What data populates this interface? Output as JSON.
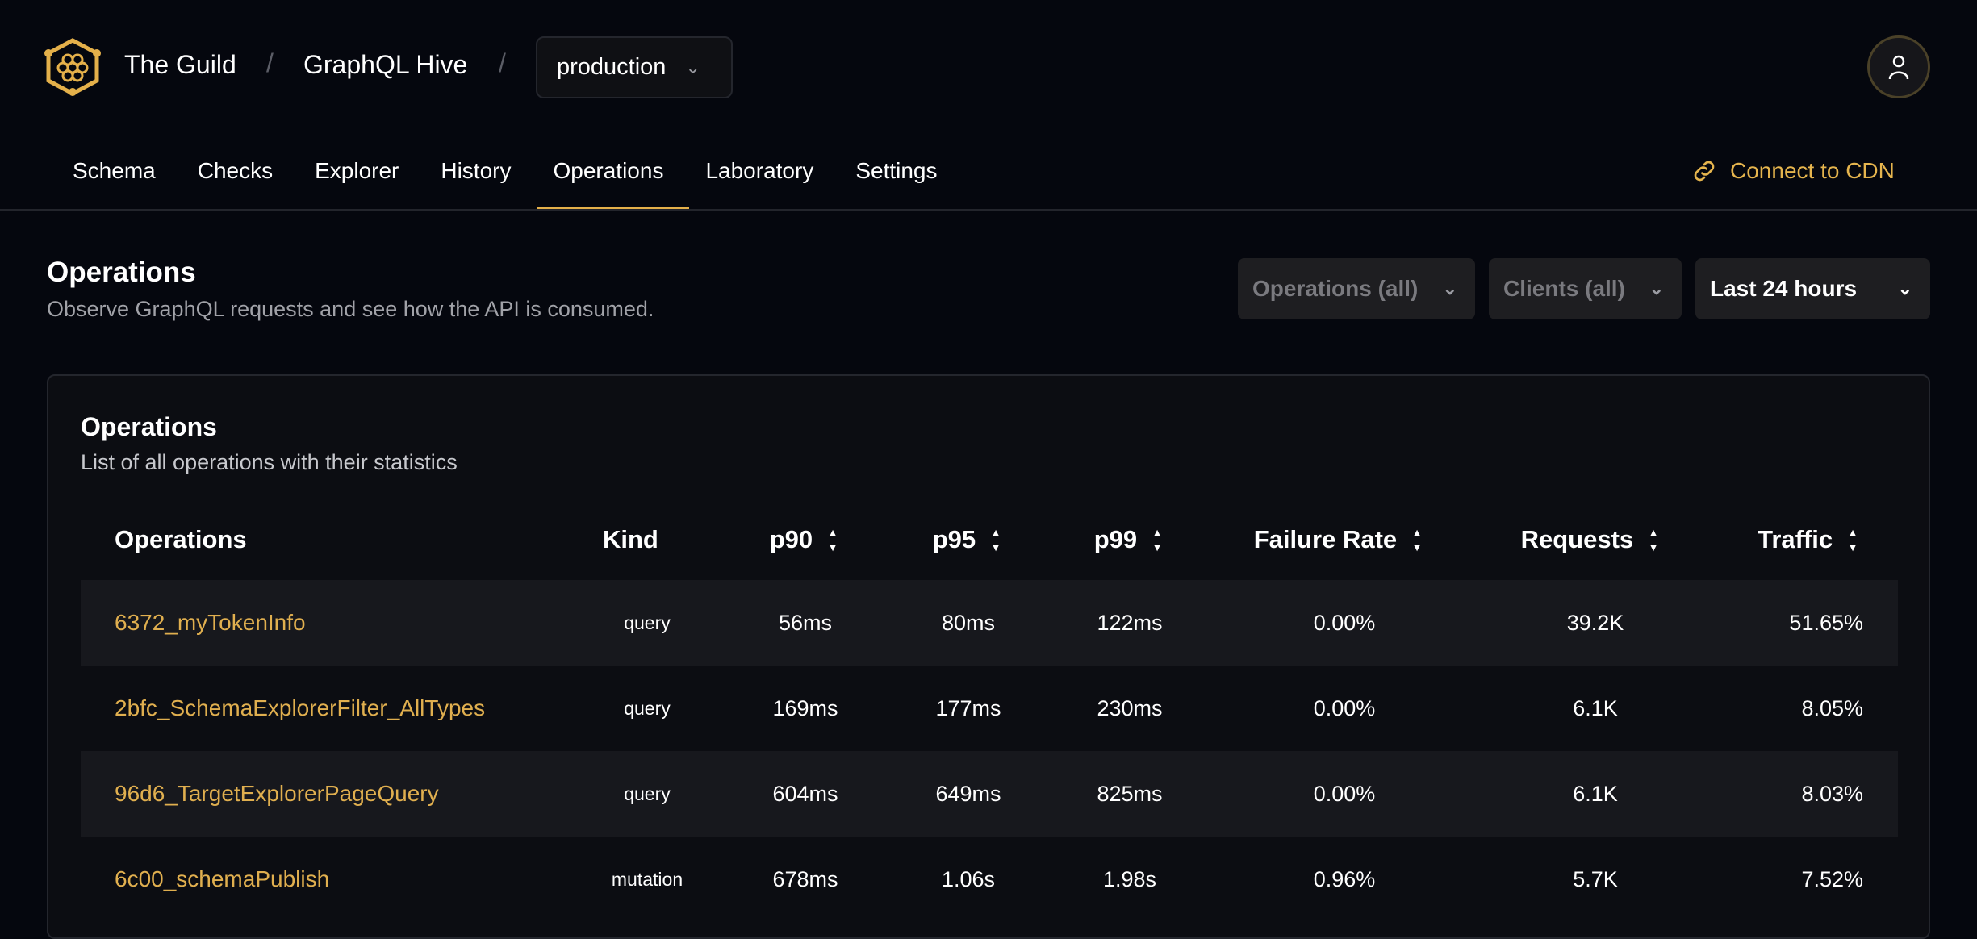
{
  "header": {
    "org": "The Guild",
    "project": "GraphQL Hive",
    "target": "production",
    "separator": "/"
  },
  "tabs": [
    {
      "label": "Schema"
    },
    {
      "label": "Checks"
    },
    {
      "label": "Explorer"
    },
    {
      "label": "History"
    },
    {
      "label": "Operations",
      "active": true
    },
    {
      "label": "Laboratory"
    },
    {
      "label": "Settings"
    }
  ],
  "cdn_label": "Connect to CDN",
  "page": {
    "title": "Operations",
    "subtitle": "Observe GraphQL requests and see how the API is consumed."
  },
  "filters": {
    "operations": "Operations (all)",
    "clients": "Clients (all)",
    "period": "Last 24 hours"
  },
  "card": {
    "title": "Operations",
    "subtitle": "List of all operations with their statistics"
  },
  "table": {
    "columns": [
      "Operations",
      "Kind",
      "p90",
      "p95",
      "p99",
      "Failure Rate",
      "Requests",
      "Traffic"
    ],
    "rows": [
      {
        "name": "6372_myTokenInfo",
        "kind": "query",
        "p90": "56ms",
        "p95": "80ms",
        "p99": "122ms",
        "failure": "0.00%",
        "requests": "39.2K",
        "traffic": "51.65%"
      },
      {
        "name": "2bfc_SchemaExplorerFilter_AllTypes",
        "kind": "query",
        "p90": "169ms",
        "p95": "177ms",
        "p99": "230ms",
        "failure": "0.00%",
        "requests": "6.1K",
        "traffic": "8.05%"
      },
      {
        "name": "96d6_TargetExplorerPageQuery",
        "kind": "query",
        "p90": "604ms",
        "p95": "649ms",
        "p99": "825ms",
        "failure": "0.00%",
        "requests": "6.1K",
        "traffic": "8.03%"
      },
      {
        "name": "6c00_schemaPublish",
        "kind": "mutation",
        "p90": "678ms",
        "p95": "1.06s",
        "p99": "1.98s",
        "failure": "0.96%",
        "requests": "5.7K",
        "traffic": "7.52%"
      }
    ]
  },
  "colors": {
    "accent": "#e4b04a",
    "background": "#05070e",
    "card": "#0c0d12"
  }
}
